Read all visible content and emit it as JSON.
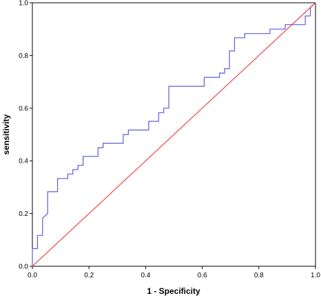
{
  "chart_data": {
    "type": "line",
    "title": "",
    "xlabel": "1 -  Specificity",
    "ylabel": "sensitivity",
    "xlim": [
      0,
      1
    ],
    "ylim": [
      0,
      1
    ],
    "x_ticks": [
      "0.0",
      "0.2",
      "0.4",
      "0.6",
      "0.8",
      "1.0"
    ],
    "y_ticks": [
      "0.0",
      "0.2",
      "0.4",
      "0.6",
      "0.8",
      "1.0"
    ],
    "grid": false,
    "legend": "none",
    "series": [
      {
        "color": "#5b5bdf",
        "points": [
          [
            0.0,
            0.0
          ],
          [
            0.0,
            0.067
          ],
          [
            0.018,
            0.067
          ],
          [
            0.018,
            0.117
          ],
          [
            0.036,
            0.117
          ],
          [
            0.036,
            0.183
          ],
          [
            0.054,
            0.2
          ],
          [
            0.054,
            0.283
          ],
          [
            0.089,
            0.283
          ],
          [
            0.089,
            0.333
          ],
          [
            0.125,
            0.333
          ],
          [
            0.125,
            0.35
          ],
          [
            0.143,
            0.35
          ],
          [
            0.143,
            0.367
          ],
          [
            0.161,
            0.367
          ],
          [
            0.161,
            0.383
          ],
          [
            0.179,
            0.383
          ],
          [
            0.179,
            0.417
          ],
          [
            0.232,
            0.417
          ],
          [
            0.232,
            0.45
          ],
          [
            0.25,
            0.45
          ],
          [
            0.25,
            0.467
          ],
          [
            0.321,
            0.467
          ],
          [
            0.321,
            0.5
          ],
          [
            0.339,
            0.5
          ],
          [
            0.339,
            0.517
          ],
          [
            0.411,
            0.517
          ],
          [
            0.411,
            0.55
          ],
          [
            0.446,
            0.55
          ],
          [
            0.446,
            0.583
          ],
          [
            0.464,
            0.583
          ],
          [
            0.464,
            0.6
          ],
          [
            0.482,
            0.6
          ],
          [
            0.482,
            0.683
          ],
          [
            0.607,
            0.683
          ],
          [
            0.607,
            0.717
          ],
          [
            0.661,
            0.717
          ],
          [
            0.661,
            0.733
          ],
          [
            0.679,
            0.733
          ],
          [
            0.679,
            0.75
          ],
          [
            0.696,
            0.75
          ],
          [
            0.696,
            0.817
          ],
          [
            0.714,
            0.817
          ],
          [
            0.714,
            0.867
          ],
          [
            0.75,
            0.867
          ],
          [
            0.75,
            0.883
          ],
          [
            0.839,
            0.883
          ],
          [
            0.839,
            0.9
          ],
          [
            0.893,
            0.9
          ],
          [
            0.893,
            0.917
          ],
          [
            0.964,
            0.917
          ],
          [
            0.964,
            0.95
          ],
          [
            0.982,
            0.95
          ],
          [
            0.982,
            0.983
          ],
          [
            1.0,
            1.0
          ]
        ]
      },
      {
        "color": "#e8474b",
        "points": [
          [
            0.0,
            0.0
          ],
          [
            1.0,
            1.0
          ]
        ]
      }
    ]
  }
}
